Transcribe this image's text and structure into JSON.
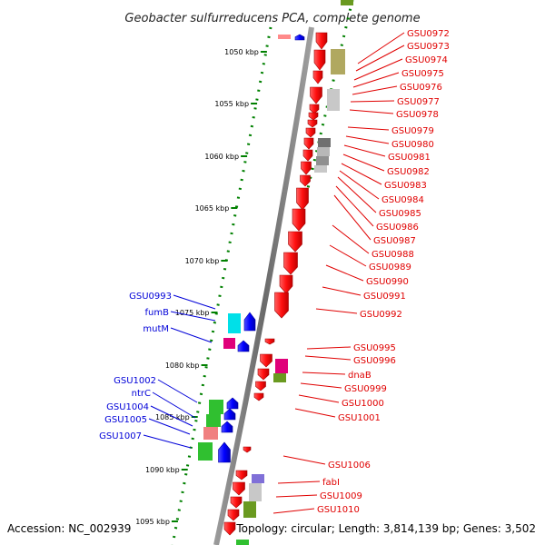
{
  "title": "Geobacter sulfurreducens PCA, complete genome",
  "footer": {
    "accession": "Accession: NC_002939",
    "topology": "Topology: circular; Length: 3,814,139 bp; Genes: 3,502"
  },
  "scale_ticks": [
    "1050 kbp",
    "1055 kbp",
    "1060 kbp",
    "1065 kbp",
    "1070 kbp",
    "1075 kbp",
    "1080 kbp",
    "1085 kbp",
    "1090 kbp",
    "1095 kbp"
  ],
  "right_labels": [
    "GSU0972",
    "GSU0973",
    "GSU0974",
    "GSU0975",
    "GSU0976",
    "GSU0977",
    "GSU0978",
    "GSU0979",
    "GSU0980",
    "GSU0981",
    "GSU0982",
    "GSU0983",
    "GSU0984",
    "GSU0985",
    "GSU0986",
    "GSU0987",
    "GSU0988",
    "GSU0989",
    "GSU0990",
    "GSU0991",
    "GSU0992",
    "GSU0995",
    "GSU0996",
    "dnaB",
    "GSU0999",
    "GSU1000",
    "GSU1001",
    "GSU1006",
    "fabI",
    "GSU1009",
    "GSU1010"
  ],
  "left_labels": [
    "GSU0993",
    "fumB",
    "mutM",
    "GSU1002",
    "ntrC",
    "GSU1004",
    "GSU1005",
    "GSU1007"
  ],
  "colors": {
    "forward_gene": "#ff1010",
    "reverse_gene": "#0000ff",
    "backbone": "#808080",
    "scale_dots": "#008000",
    "right_label": "#e00000",
    "left_label": "#0000d8"
  }
}
